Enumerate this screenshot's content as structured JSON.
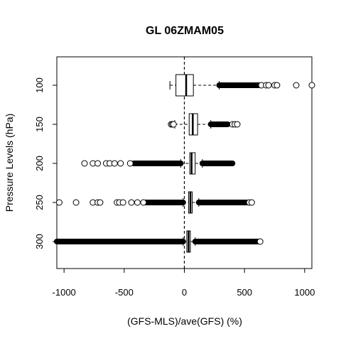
{
  "chart_data": {
    "type": "boxplot",
    "orientation": "horizontal",
    "title": "GL 06ZMAM05",
    "xlabel": "(GFS-MLS)/ave(GFS) (%)",
    "ylabel": "Pressure Levels (hPa)",
    "xlim": [
      -1060,
      1060
    ],
    "x_ticks": [
      -1000,
      -500,
      0,
      500,
      1000
    ],
    "x_tick_labels": [
      "-1000",
      "-500",
      "0",
      "500",
      "1000"
    ],
    "reference_line": {
      "x": 0,
      "style": "dashed"
    },
    "grid": false,
    "legend": "none",
    "categories": [
      "100",
      "150",
      "200",
      "250",
      "300"
    ],
    "series": [
      {
        "level": "100",
        "whisker_low": -120,
        "q1": -70,
        "median": 15,
        "q3": 75,
        "whisker_high": 290,
        "outlier_bands": [
          [
            290,
            620
          ]
        ],
        "outliers": [
          640,
          680,
          700,
          750,
          770,
          930,
          1060
        ]
      },
      {
        "level": "150",
        "whisker_low": -80,
        "q1": 40,
        "median": 70,
        "q3": 110,
        "whisker_high": 220,
        "outlier_bands": [
          [
            220,
            360
          ]
        ],
        "outliers": [
          -110,
          -100,
          -90,
          400,
          420,
          440
        ]
      },
      {
        "level": "200",
        "whisker_low": -30,
        "q1": 45,
        "median": 60,
        "q3": 90,
        "whisker_high": 150,
        "outlier_bands": [
          [
            -420,
            -30
          ],
          [
            150,
            400
          ]
        ],
        "outliers": [
          -830,
          -760,
          -720,
          -650,
          -620,
          -580,
          -530,
          -450
        ]
      },
      {
        "level": "250",
        "whisker_low": -10,
        "q1": 35,
        "median": 50,
        "q3": 65,
        "whisker_high": 120,
        "outlier_bands": [
          [
            -320,
            -10
          ],
          [
            120,
            520
          ]
        ],
        "outliers": [
          -1040,
          -900,
          -760,
          -720,
          -700,
          -560,
          -540,
          -510,
          -440,
          -390,
          -340,
          540,
          560
        ]
      },
      {
        "level": "300",
        "whisker_low": -10,
        "q1": 20,
        "median": 35,
        "q3": 50,
        "whisker_high": 90,
        "outlier_bands": [
          [
            -1060,
            -10
          ],
          [
            90,
            610
          ]
        ],
        "outliers": [
          630
        ]
      }
    ]
  }
}
